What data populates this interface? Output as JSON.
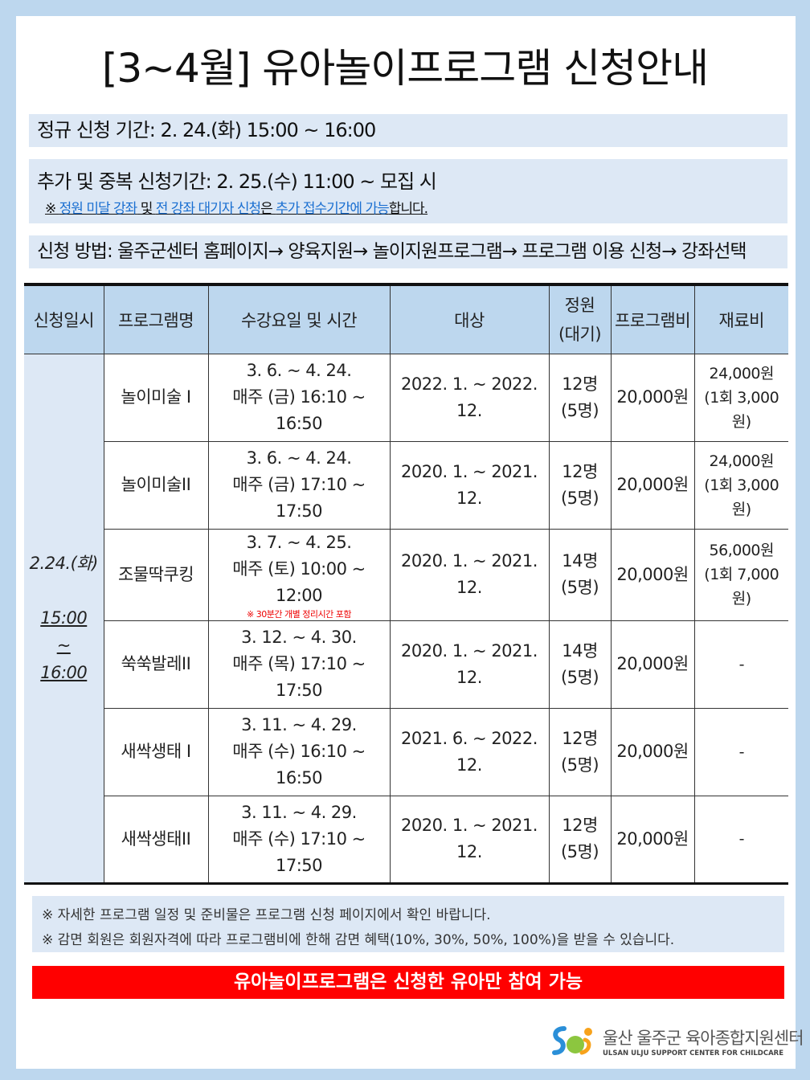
{
  "title": "[3~4월] 유아놀이프로그램 신청안내",
  "regular_period": "정규 신청 기간: 2. 24.(화) 15:00 ~ 16:00",
  "extra_period": "추가 및 중복 신청기간: 2. 25.(수) 11:00 ~ 모집 시",
  "extra_note": {
    "prefix": "※ ",
    "p1": "정원 미달 강좌",
    "p2": " 및 ",
    "p3": "전 강좌 대기자 신청",
    "p4": "은 ",
    "p5": "추가 접수기간에 가능",
    "p6": "합니다."
  },
  "method": "신청 방법: 울주군센터 홈페이지→ 양육지원→ 놀이지원프로그램→ 프로그램 이용 신청→ 강좌선택",
  "table": {
    "headers": [
      "신청일시",
      "프로그램명",
      "수강요일 및 시간",
      "대상",
      "정원",
      "(대기)",
      "프로그램비",
      "재료비"
    ],
    "date": {
      "day": "2.24.(화)",
      "start": "15:00",
      "sep": "~",
      "end": "16:00"
    },
    "rows": [
      {
        "name": "놀이미술 I",
        "period": "3. 6. ~ 4. 24.",
        "time": "매주 (금) 16:10 ~ 16:50",
        "note": "",
        "target": "2022. 1. ~ 2022. 12.",
        "cap": "12명",
        "wait": "(5명)",
        "fee": "20,000원",
        "mat1": "24,000원",
        "mat2": "(1회 3,000원)"
      },
      {
        "name": "놀이미술II",
        "period": "3. 6. ~ 4. 24.",
        "time": "매주 (금) 17:10 ~ 17:50",
        "note": "",
        "target": "2020. 1. ~ 2021. 12.",
        "cap": "12명",
        "wait": "(5명)",
        "fee": "20,000원",
        "mat1": "24,000원",
        "mat2": "(1회 3,000원)"
      },
      {
        "name": "조물딱쿠킹",
        "period": "3. 7. ~ 4. 25.",
        "time": "매주 (토) 10:00 ~ 12:00",
        "note": "※  30분간  개별 정리시간 포함",
        "target": "2020. 1. ~ 2021. 12.",
        "cap": "14명",
        "wait": "(5명)",
        "fee": "20,000원",
        "mat1": "56,000원",
        "mat2": "(1회 7,000원)"
      },
      {
        "name": "쑥쑥발레II",
        "period": "3. 12. ~ 4. 30.",
        "time": "매주 (목) 17:10 ~ 17:50",
        "note": "",
        "target": "2020. 1. ~ 2021. 12.",
        "cap": "14명",
        "wait": "(5명)",
        "fee": "20,000원",
        "mat1": "-",
        "mat2": ""
      },
      {
        "name": "새싹생태 I",
        "period": "3. 11. ~ 4. 29.",
        "time": "매주 (수) 16:10 ~ 16:50",
        "note": "",
        "target": "2021. 6. ~ 2022. 12.",
        "cap": "12명",
        "wait": "(5명)",
        "fee": "20,000원",
        "mat1": "-",
        "mat2": ""
      },
      {
        "name": "새싹생태II",
        "period": "3. 11. ~ 4. 29.",
        "time": "매주 (수) 17:10 ~ 17:50",
        "note": "",
        "target": "2020. 1. ~ 2021. 12.",
        "cap": "12명",
        "wait": "(5명)",
        "fee": "20,000원",
        "mat1": "-",
        "mat2": ""
      }
    ]
  },
  "notes": [
    "※ 자세한 프로그램 일정 및 준비물은 프로그램 신청 페이지에서 확인 바랍니다.",
    "※ 감면 회원은 회원자격에 따라 프로그램비에 한해 감면 혜택(10%, 30%, 50%, 100%)을 받을 수 있습니다."
  ],
  "banner": "유아놀이프로그램은 신청한 유아만 참여 가능",
  "logo": {
    "ko": "울산 울주군 육아종합지원센터",
    "en": "ULSAN ULJU SUPPORT CENTER FOR CHILDCARE"
  },
  "colors": {
    "light_blue": "#bdd7ee",
    "pale_blue": "#dde8f5",
    "red": "#ff0000",
    "link": "#1a6fd1"
  }
}
